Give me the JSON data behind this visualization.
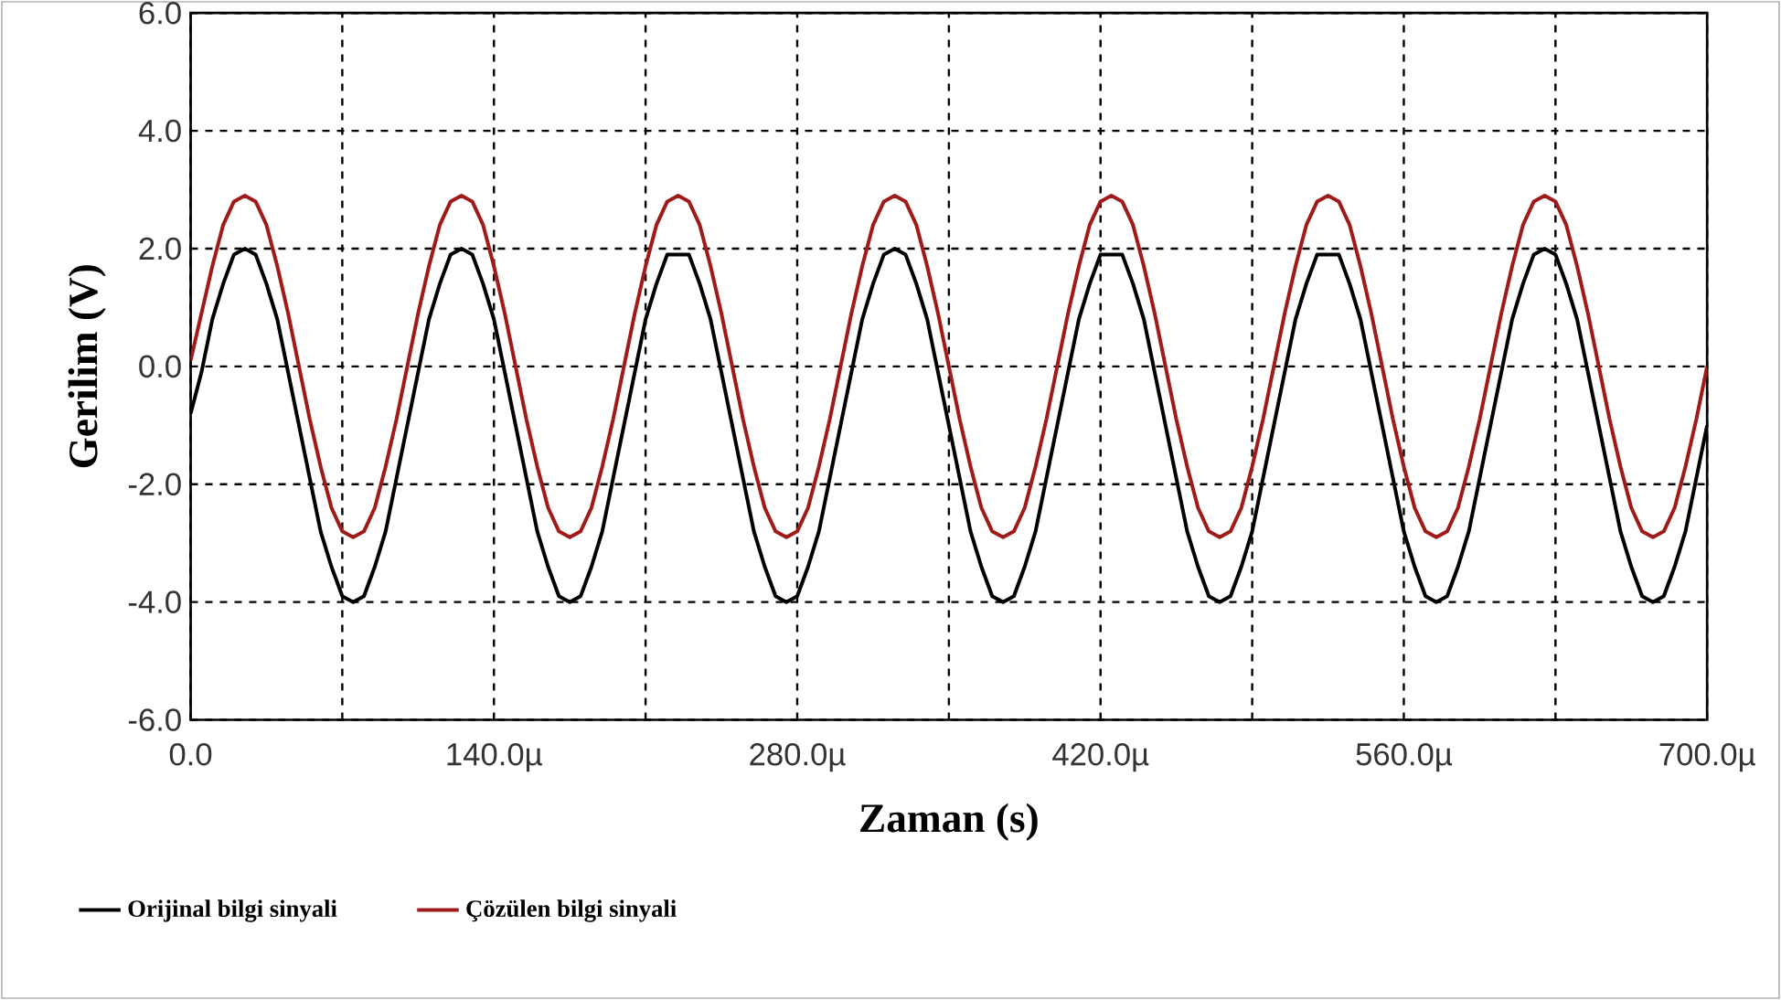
{
  "chart_data": {
    "type": "line",
    "xlabel": "Zaman (s)",
    "ylabel": "Gerilim (V)",
    "xlim": [
      0,
      700
    ],
    "xticks": [
      {
        "value": 0,
        "label": "0.0"
      },
      {
        "value": 70,
        "label": null
      },
      {
        "value": 140,
        "label": "140.0µ"
      },
      {
        "value": 210,
        "label": null
      },
      {
        "value": 280,
        "label": "280.0µ"
      },
      {
        "value": 350,
        "label": null
      },
      {
        "value": 420,
        "label": "420.0µ"
      },
      {
        "value": 490,
        "label": null
      },
      {
        "value": 560,
        "label": "560.0µ"
      },
      {
        "value": 630,
        "label": null
      },
      {
        "value": 700,
        "label": "700.0µ"
      }
    ],
    "ylim": [
      -6,
      6
    ],
    "yticks": [
      {
        "value": -6,
        "label": "-6.0"
      },
      {
        "value": -4,
        "label": "-4.0"
      },
      {
        "value": -2,
        "label": "-2.0"
      },
      {
        "value": 0,
        "label": "0.0"
      },
      {
        "value": 2,
        "label": "2.0"
      },
      {
        "value": 4,
        "label": "4.0"
      },
      {
        "value": 6,
        "label": "6.0"
      }
    ],
    "grid": true,
    "legend": "bottom",
    "line_style": "solid",
    "marker": "none",
    "x": [
      0,
      5,
      10,
      15,
      20,
      25,
      30,
      35,
      40,
      45,
      50,
      55,
      60,
      65,
      70,
      75,
      80,
      85,
      90,
      95,
      100,
      105,
      110,
      115,
      120,
      125,
      130,
      135,
      140,
      145,
      150,
      155,
      160,
      165,
      170,
      175,
      180,
      185,
      190,
      195,
      200,
      205,
      210,
      215,
      220,
      225,
      230,
      235,
      240,
      245,
      250,
      255,
      260,
      265,
      270,
      275,
      280,
      285,
      290,
      295,
      300,
      305,
      310,
      315,
      320,
      325,
      330,
      335,
      340,
      345,
      350,
      355,
      360,
      365,
      370,
      375,
      380,
      385,
      390,
      395,
      400,
      405,
      410,
      415,
      420,
      425,
      430,
      435,
      440,
      445,
      450,
      455,
      460,
      465,
      470,
      475,
      480,
      485,
      490,
      495,
      500,
      505,
      510,
      515,
      520,
      525,
      530,
      535,
      540,
      545,
      550,
      555,
      560,
      565,
      570,
      575,
      580,
      585,
      590,
      595,
      600,
      605,
      610,
      615,
      620,
      625,
      630,
      635,
      640,
      645,
      650,
      655,
      660,
      665,
      670,
      675,
      680,
      685,
      690,
      695,
      700
    ],
    "series": [
      {
        "name": "Orijinal bilgi sinyali",
        "color": "#000000",
        "values": [
          -0.8,
          -0.1,
          0.8,
          1.4,
          1.9,
          2.0,
          1.9,
          1.4,
          0.8,
          -0.1,
          -1.0,
          -1.9,
          -2.8,
          -3.4,
          -3.9,
          -4.0,
          -3.9,
          -3.4,
          -2.8,
          -1.9,
          -1.0,
          -0.1,
          0.8,
          1.4,
          1.9,
          2.0,
          1.9,
          1.4,
          0.8,
          -0.1,
          -1.0,
          -1.9,
          -2.8,
          -3.4,
          -3.9,
          -4.0,
          -3.9,
          -3.4,
          -2.8,
          -1.9,
          -1.0,
          -0.1,
          0.8,
          1.4,
          1.9,
          1.9,
          1.9,
          1.4,
          0.8,
          -0.1,
          -1.0,
          -1.9,
          -2.8,
          -3.4,
          -3.9,
          -4.0,
          -3.9,
          -3.4,
          -2.8,
          -1.9,
          -1.0,
          -0.1,
          0.8,
          1.4,
          1.9,
          2.0,
          1.9,
          1.4,
          0.8,
          -0.1,
          -1.0,
          -1.9,
          -2.8,
          -3.4,
          -3.9,
          -4.0,
          -3.9,
          -3.4,
          -2.8,
          -1.9,
          -1.0,
          -0.1,
          0.8,
          1.4,
          1.9,
          1.9,
          1.9,
          1.4,
          0.8,
          -0.1,
          -1.0,
          -1.9,
          -2.8,
          -3.4,
          -3.9,
          -4.0,
          -3.9,
          -3.4,
          -2.8,
          -1.9,
          -1.0,
          -0.1,
          0.8,
          1.4,
          1.9,
          1.9,
          1.9,
          1.4,
          0.8,
          -0.1,
          -1.0,
          -1.9,
          -2.8,
          -3.4,
          -3.9,
          -4.0,
          -3.9,
          -3.4,
          -2.8,
          -1.9,
          -1.0,
          -0.1,
          0.8,
          1.4,
          1.9,
          2.0,
          1.9,
          1.4,
          0.8,
          -0.1,
          -1.0,
          -1.9,
          -2.8,
          -3.4,
          -3.9,
          -4.0,
          -3.9,
          -3.4,
          -2.8,
          -1.9,
          -1.0
        ]
      },
      {
        "name": "Çözülen bilgi sinyali",
        "color": "#a01a1a",
        "values": [
          0.1,
          0.9,
          1.7,
          2.4,
          2.8,
          2.9,
          2.8,
          2.4,
          1.7,
          0.9,
          0.0,
          -0.9,
          -1.7,
          -2.4,
          -2.8,
          -2.9,
          -2.8,
          -2.4,
          -1.7,
          -0.9,
          0.0,
          0.9,
          1.7,
          2.4,
          2.8,
          2.9,
          2.8,
          2.4,
          1.7,
          0.9,
          0.0,
          -0.9,
          -1.7,
          -2.4,
          -2.8,
          -2.9,
          -2.8,
          -2.4,
          -1.7,
          -0.9,
          0.0,
          0.9,
          1.7,
          2.4,
          2.8,
          2.9,
          2.8,
          2.4,
          1.7,
          0.9,
          0.0,
          -0.9,
          -1.7,
          -2.4,
          -2.8,
          -2.9,
          -2.8,
          -2.4,
          -1.7,
          -0.9,
          0.0,
          0.9,
          1.7,
          2.4,
          2.8,
          2.9,
          2.8,
          2.4,
          1.7,
          0.9,
          0.0,
          -0.9,
          -1.7,
          -2.4,
          -2.8,
          -2.9,
          -2.8,
          -2.4,
          -1.7,
          -0.9,
          0.0,
          0.9,
          1.7,
          2.4,
          2.8,
          2.9,
          2.8,
          2.4,
          1.7,
          0.9,
          0.0,
          -0.9,
          -1.7,
          -2.4,
          -2.8,
          -2.9,
          -2.8,
          -2.4,
          -1.7,
          -0.9,
          0.0,
          0.9,
          1.7,
          2.4,
          2.8,
          2.9,
          2.8,
          2.4,
          1.7,
          0.9,
          0.0,
          -0.9,
          -1.7,
          -2.4,
          -2.8,
          -2.9,
          -2.8,
          -2.4,
          -1.7,
          -0.9,
          0.0,
          0.9,
          1.7,
          2.4,
          2.8,
          2.9,
          2.8,
          2.4,
          1.7,
          0.9,
          0.0,
          -0.9,
          -1.7,
          -2.4,
          -2.8,
          -2.9,
          -2.8,
          -2.4,
          -1.7,
          -0.9,
          0.0
        ]
      }
    ]
  }
}
